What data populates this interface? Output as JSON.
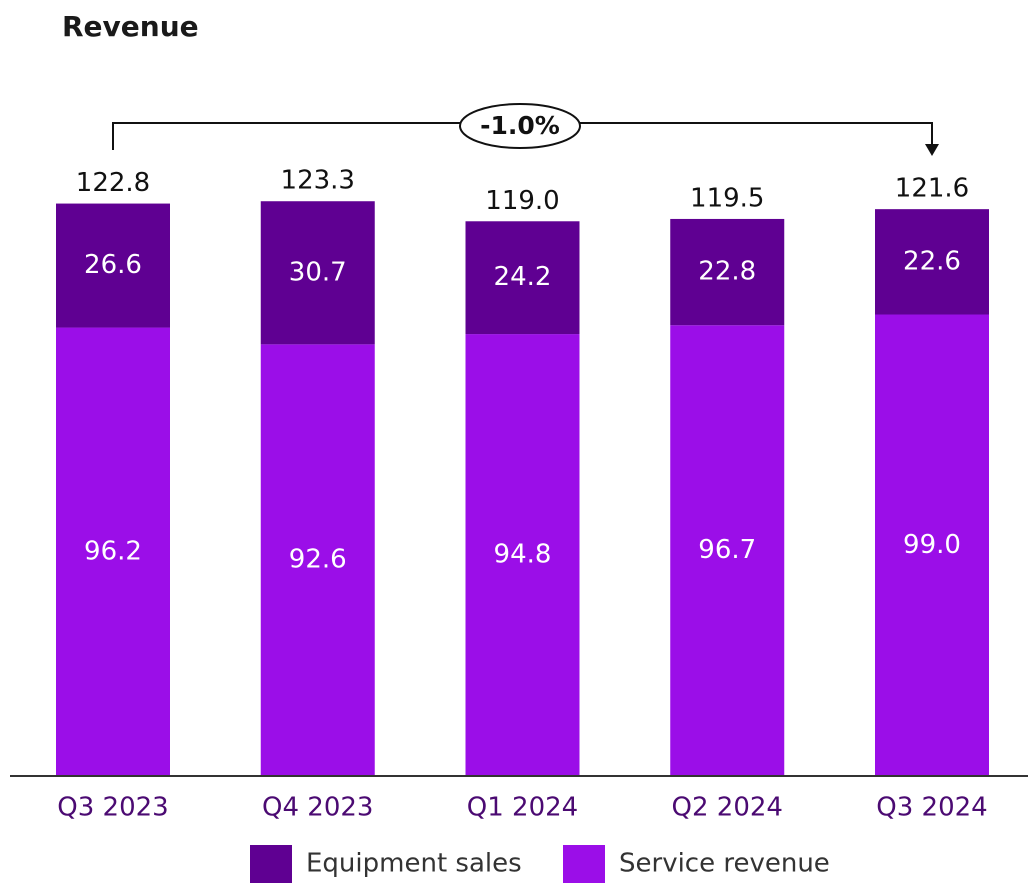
{
  "chart_data": {
    "type": "stacked_bar",
    "title": "Revenue",
    "categories": [
      "Q3 2023",
      "Q4 2023",
      "Q1 2024",
      "Q2 2024",
      "Q3 2024"
    ],
    "series": [
      {
        "name": "Service revenue",
        "color": "#9b0ee8",
        "values": [
          96.2,
          92.6,
          94.8,
          96.7,
          99.0
        ],
        "value_labels": [
          "96.2",
          "92.6",
          "94.8",
          "96.7",
          "99.0"
        ]
      },
      {
        "name": "Equipment sales",
        "color": "#5f0092",
        "values": [
          26.6,
          30.7,
          24.2,
          22.8,
          22.6
        ],
        "value_labels": [
          "26.6",
          "30.7",
          "24.2",
          "22.8",
          "22.6"
        ]
      }
    ],
    "total_labels": [
      "122.8",
      "123.3",
      "119.0",
      "119.5",
      "121.6"
    ],
    "annotation": "-1.0%",
    "ylim": [
      0,
      130
    ]
  }
}
